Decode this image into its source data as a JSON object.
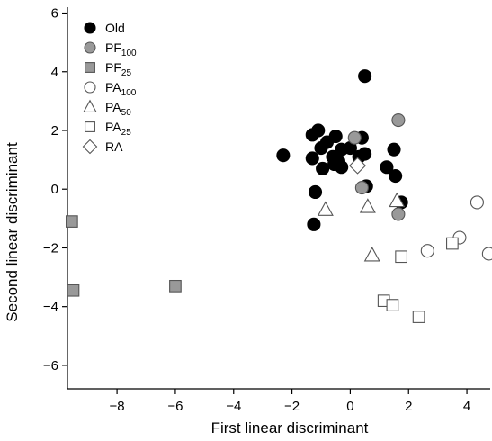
{
  "chart_data": {
    "type": "scatter",
    "xlabel": "First linear discriminant",
    "ylabel": "Second linear discriminant",
    "xlim": [
      -9.7,
      4.8
    ],
    "ylim": [
      -6.8,
      6.2
    ],
    "xticks": [
      -8,
      -6,
      -4,
      -2,
      0,
      2,
      4
    ],
    "yticks": [
      -6,
      -4,
      -2,
      0,
      2,
      4,
      6
    ],
    "grid": false,
    "legend_position": "top-left",
    "series": [
      {
        "name": "Old",
        "marker": "circle",
        "fill": "#000000",
        "stroke": "#000000",
        "points": [
          [
            0.5,
            3.85
          ],
          [
            -1.1,
            2.0
          ],
          [
            -1.3,
            1.85
          ],
          [
            -0.8,
            1.6
          ],
          [
            -0.5,
            1.8
          ],
          [
            0.4,
            1.75
          ],
          [
            -0.3,
            1.35
          ],
          [
            0.0,
            1.4
          ],
          [
            -1.0,
            1.4
          ],
          [
            1.5,
            1.35
          ],
          [
            -2.3,
            1.15
          ],
          [
            -1.3,
            1.05
          ],
          [
            -0.6,
            1.1
          ],
          [
            -0.4,
            0.95
          ],
          [
            0.3,
            1.1
          ],
          [
            0.5,
            1.2
          ],
          [
            -0.55,
            0.85
          ],
          [
            -0.95,
            0.7
          ],
          [
            -0.3,
            0.75
          ],
          [
            1.25,
            0.75
          ],
          [
            1.55,
            0.45
          ],
          [
            -1.2,
            -0.1
          ],
          [
            0.55,
            0.1
          ],
          [
            1.75,
            -0.45
          ],
          [
            -1.25,
            -1.2
          ]
        ]
      },
      {
        "name": "PF",
        "name_sub": "100",
        "marker": "circle",
        "fill": "#999999",
        "stroke": "#555555",
        "points": [
          [
            1.65,
            2.35
          ],
          [
            0.15,
            1.75
          ],
          [
            0.4,
            0.05
          ],
          [
            1.65,
            -0.85
          ]
        ]
      },
      {
        "name": "PF",
        "name_sub": "25",
        "marker": "square",
        "fill": "#999999",
        "stroke": "#555555",
        "points": [
          [
            -9.55,
            -1.1
          ],
          [
            -9.5,
            -3.45
          ],
          [
            -6.0,
            -3.3
          ]
        ]
      },
      {
        "name": "PA",
        "name_sub": "100",
        "marker": "circle",
        "fill": "#ffffff",
        "stroke": "#555555",
        "points": [
          [
            4.35,
            -0.45
          ],
          [
            3.75,
            -1.65
          ],
          [
            2.65,
            -2.1
          ],
          [
            4.75,
            -2.2
          ]
        ]
      },
      {
        "name": "PA",
        "name_sub": "50",
        "marker": "triangle",
        "fill": "#ffffff",
        "stroke": "#555555",
        "points": [
          [
            -0.85,
            -0.7
          ],
          [
            0.6,
            -0.6
          ],
          [
            1.6,
            -0.4
          ],
          [
            0.75,
            -2.25
          ]
        ]
      },
      {
        "name": "PA",
        "name_sub": "25",
        "marker": "square",
        "fill": "#ffffff",
        "stroke": "#555555",
        "points": [
          [
            3.5,
            -1.85
          ],
          [
            1.75,
            -2.3
          ],
          [
            1.15,
            -3.8
          ],
          [
            1.45,
            -3.95
          ],
          [
            2.35,
            -4.35
          ]
        ]
      },
      {
        "name": "RA",
        "marker": "diamond",
        "fill": "#ffffff",
        "stroke": "#555555",
        "points": [
          [
            0.25,
            0.8
          ]
        ]
      }
    ]
  }
}
